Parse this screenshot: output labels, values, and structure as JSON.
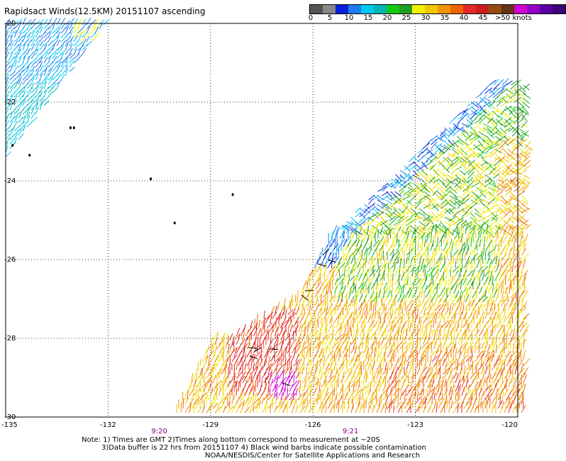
{
  "title": "Rapidsact Winds(12.5KM) 20151107 ascending",
  "colorbar": {
    "colors": [
      "#555555",
      "#888888",
      "#0a1fd8",
      "#1e7cf0",
      "#00c8f0",
      "#00b4b4",
      "#14c814",
      "#1e9e1e",
      "#f0f000",
      "#f0c800",
      "#f09600",
      "#f06400",
      "#e62828",
      "#c81e1e",
      "#964b14",
      "#643214",
      "#d200d2",
      "#9600c8",
      "#5a00a0",
      "#3c0078"
    ],
    "labels": [
      "0",
      "5",
      "10",
      "15",
      "20",
      "25",
      "30",
      "35",
      "40",
      "45",
      ">50 knots"
    ]
  },
  "axes": {
    "lat_ticks": [
      "-20",
      "-22",
      "-24",
      "-26",
      "-28",
      "-30"
    ],
    "lon_ticks": [
      "-135",
      "-132",
      "-129",
      "-126",
      "-123",
      "-120"
    ]
  },
  "pass_times": [
    {
      "label": "9:20",
      "lon": -130.5
    },
    {
      "label": "9:21",
      "lon": -124.9
    }
  ],
  "notes": {
    "line1": "Note: 1) Times are GMT 2)Times along bottom correspond to measurement at ~20S",
    "line2": "3)Data buffer is 22 hrs from 20151107 4) Black wind barbs indicate possible contamination",
    "line3": "NOAA/NESDIS/Center for Satellite Applications and Research"
  },
  "map_extent": {
    "lon_min": -135,
    "lon_max": -120,
    "lat_min": -30,
    "lat_max": -20
  },
  "islands": [
    {
      "lon": -133.1,
      "lat": -22.65
    },
    {
      "lon": -133.0,
      "lat": -22.65
    },
    {
      "lon": -134.8,
      "lat": -23.1
    },
    {
      "lon": -134.3,
      "lat": -23.35
    },
    {
      "lon": -130.75,
      "lat": -23.95
    },
    {
      "lon": -128.35,
      "lat": -24.35
    },
    {
      "lon": -130.05,
      "lat": -25.07
    }
  ]
}
